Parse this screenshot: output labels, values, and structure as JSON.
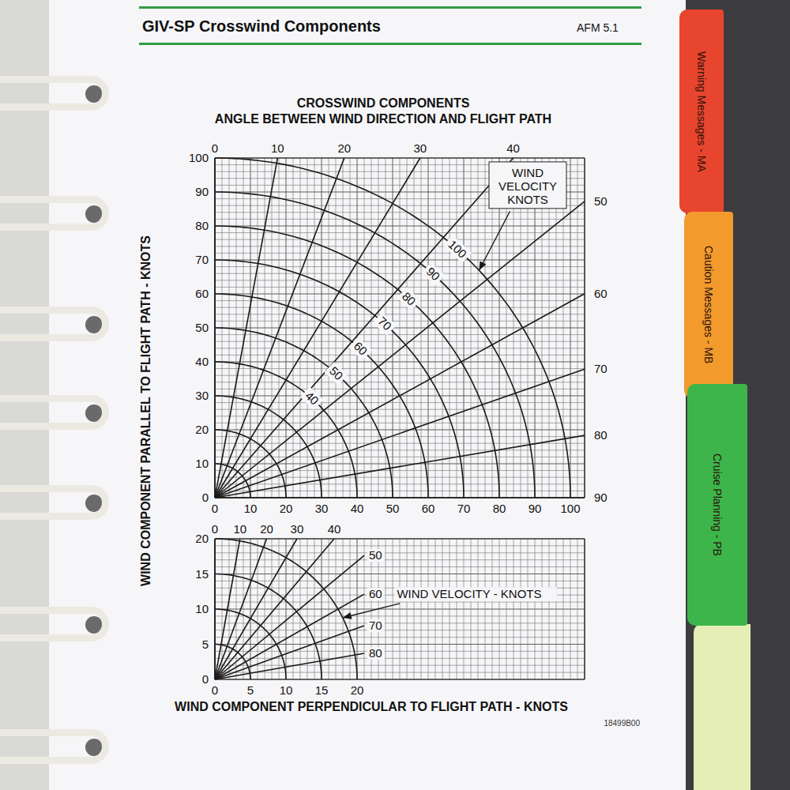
{
  "header": {
    "title": "GIV-SP Crosswind Components",
    "reference": "AFM 5.1"
  },
  "tabs": [
    {
      "label": "Warning Messages - MA",
      "color": "#e8452f"
    },
    {
      "label": "Caution Messages - MB",
      "color": "#f39a2d"
    },
    {
      "label": "Cruise Planning - PB",
      "color": "#3db54b"
    }
  ],
  "title": "CROSSWIND COMPONENTS",
  "subtitle": "ANGLE BETWEEN WIND DIRECTION AND FLIGHT PATH",
  "x_label": "WIND COMPONENT PERPENDICULAR TO FLIGHT PATH - KNOTS",
  "y_label": "WIND COMPONENT PARALLEL TO FLIGHT PATH - KNOTS",
  "figure_id": "18499B00",
  "chart_data": [
    {
      "type": "line",
      "xlim": [
        0,
        104
      ],
      "ylim": [
        0,
        100
      ],
      "xticks": [
        0,
        10,
        20,
        30,
        40,
        50,
        60,
        70,
        80,
        90,
        100
      ],
      "yticks": [
        0,
        10,
        20,
        30,
        40,
        50,
        60,
        70,
        80,
        90,
        100
      ],
      "grid": true,
      "color": "#1a1a1a",
      "angles": [
        0,
        10,
        20,
        30,
        40,
        50,
        60,
        70,
        80,
        90
      ],
      "wind_velocities": [
        10,
        20,
        30,
        40,
        50,
        60,
        70,
        80,
        90,
        100
      ],
      "labeled_velocities": [
        40,
        50,
        60,
        70,
        80,
        90,
        100
      ],
      "annotation": "WIND VELOCITY KNOTS"
    },
    {
      "type": "line",
      "xlim": [
        0,
        52
      ],
      "ylim": [
        0,
        20
      ],
      "xticks": [
        0,
        5,
        10,
        15,
        20
      ],
      "yticks": [
        0,
        5,
        10,
        15,
        20
      ],
      "grid": true,
      "color": "#1a1a1a",
      "angles": [
        0,
        10,
        20,
        30,
        40,
        50,
        60,
        70,
        80
      ],
      "wind_velocities": [
        5,
        10,
        15,
        20
      ],
      "labeled_velocities": [],
      "annotation": "WIND VELOCITY - KNOTS"
    }
  ]
}
